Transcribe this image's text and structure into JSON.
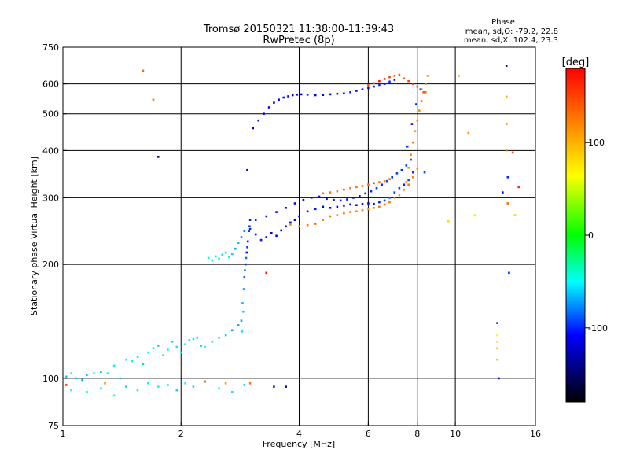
{
  "chart_data": {
    "type": "scatter",
    "title": "Tromsø 20150321 11:38:00-11:39:43",
    "subtitle": "RwPretec (8p)",
    "xlabel": "Frequency [MHz]",
    "ylabel": "Stationary phase Virtual Height [km]",
    "x_scale": "log",
    "y_scale": "log",
    "xlim": [
      1,
      16
    ],
    "ylim": [
      75,
      750
    ],
    "xticks": [
      1,
      2,
      4,
      6,
      8,
      10,
      16
    ],
    "yticks": [
      75,
      100,
      200,
      300,
      400,
      500,
      600,
      750
    ],
    "xgrid": [
      2,
      4,
      6,
      8,
      10
    ],
    "ygrid": [
      100,
      200,
      300,
      400,
      500,
      600
    ],
    "grid": true,
    "stats_title": "Phase",
    "stats": [
      "mean, sd,O: -79.2, 22.8",
      "mean, sd,X: 102.4, 23.3"
    ],
    "colorbar": {
      "label": "[deg]",
      "range": [
        -180,
        180
      ],
      "ticks": [
        100,
        0,
        -100
      ],
      "colors": [
        "#ff0000",
        "#ff7f00",
        "#ffff00",
        "#00ff00",
        "#00ffff",
        "#0000ff",
        "#000000"
      ]
    },
    "series": [
      {
        "x": [
          1.02,
          1.05,
          1.08,
          1.12,
          1.15,
          1.2,
          1.25,
          1.3,
          1.35,
          1.4,
          1.45,
          1.5,
          1.55,
          1.6,
          1.65,
          1.7,
          1.75,
          1.8,
          1.85,
          1.9,
          1.95,
          2.0,
          2.05,
          2.1,
          2.15,
          2.2,
          2.25,
          2.3,
          2.4,
          2.5,
          2.6,
          2.7,
          2.8
        ],
        "y": [
          101,
          103,
          100,
          99,
          102,
          103,
          104,
          103,
          108,
          100,
          112,
          111,
          114,
          109,
          117,
          120,
          122,
          115,
          119,
          125,
          121,
          117,
          123,
          126,
          127,
          128,
          122,
          121,
          125,
          128,
          130,
          134,
          138
        ],
        "phase": [
          -60,
          -40,
          -60,
          -70,
          -65,
          -50,
          -60,
          -50,
          -40,
          -60,
          -50,
          -45,
          -55,
          -60,
          -50,
          -55,
          -60,
          -45,
          -50,
          -60,
          -55,
          -50,
          -55,
          -60,
          -50,
          -55,
          -60,
          -50,
          -55,
          -55,
          -60,
          -70,
          -75
        ]
      },
      {
        "x": [
          1.05,
          1.15,
          1.25,
          1.35,
          1.45,
          1.55,
          1.65,
          1.75,
          1.85,
          1.95,
          2.05,
          2.15,
          2.3,
          2.5,
          2.7,
          2.9
        ],
        "y": [
          93,
          92,
          94,
          90,
          95,
          93,
          97,
          95,
          96,
          93,
          97,
          95,
          98,
          94,
          92,
          96
        ],
        "phase": [
          -50,
          -45,
          -55,
          -50,
          -60,
          -50,
          -55,
          -45,
          -50,
          -60,
          -50,
          -55,
          -60,
          -50,
          -55,
          -60
        ]
      },
      {
        "x": [
          2.85,
          2.87,
          2.89,
          2.9,
          2.92,
          2.94,
          2.96,
          2.98,
          3.0,
          2.88,
          2.91,
          2.95,
          2.99,
          2.86,
          2.93
        ],
        "y": [
          142,
          158,
          172,
          185,
          200,
          215,
          230,
          245,
          262,
          150,
          193,
          222,
          252,
          133,
          208
        ],
        "phase": [
          -70,
          -65,
          -75,
          -90,
          -100,
          -110,
          -105,
          -95,
          -100,
          -60,
          -80,
          -95,
          -100,
          -55,
          -85
        ]
      },
      {
        "x": [
          2.35,
          2.4,
          2.45,
          2.5,
          2.55,
          2.6,
          2.65,
          2.7,
          2.75,
          2.8,
          2.85,
          2.9
        ],
        "y": [
          208,
          205,
          210,
          207,
          212,
          215,
          209,
          213,
          220,
          228,
          236,
          245
        ],
        "phase": [
          -50,
          -45,
          -55,
          -50,
          -60,
          -55,
          -50,
          -60,
          -70,
          -65,
          -75,
          -80
        ]
      },
      {
        "x": [
          3.0,
          3.1,
          3.2,
          3.3,
          3.4,
          3.5,
          3.6,
          3.7,
          3.8,
          3.9,
          4.0,
          4.2,
          4.4,
          4.6,
          4.8,
          5.0,
          5.2,
          5.4,
          5.6,
          5.8,
          6.0,
          6.2,
          6.4,
          6.6,
          6.8,
          7.0,
          7.2,
          7.4,
          7.6,
          7.8
        ],
        "y": [
          248,
          240,
          232,
          236,
          242,
          238,
          246,
          252,
          258,
          262,
          268,
          276,
          280,
          284,
          282,
          284,
          286,
          288,
          287,
          289,
          290,
          289,
          292,
          295,
          300,
          310,
          318,
          325,
          334,
          350
        ],
        "phase": [
          -100,
          -110,
          -105,
          -115,
          -110,
          -108,
          -112,
          -105,
          -110,
          -115,
          -108,
          -110,
          -105,
          -112,
          -110,
          -108,
          -106,
          -110,
          -104,
          -108,
          -110,
          -106,
          -104,
          -100,
          -90,
          -100,
          -95,
          -100,
          -90,
          -95
        ]
      },
      {
        "x": [
          3.1,
          3.3,
          3.5,
          3.7,
          3.9,
          4.1,
          4.3,
          4.5,
          4.7,
          4.9,
          5.1,
          5.3,
          5.5,
          5.7,
          5.9,
          6.1,
          6.3,
          6.5,
          6.7,
          6.9,
          7.1,
          7.3,
          7.5,
          7.7
        ],
        "y": [
          262,
          268,
          275,
          282,
          290,
          296,
          300,
          302,
          298,
          296,
          295,
          297,
          300,
          303,
          308,
          312,
          318,
          325,
          332,
          340,
          348,
          355,
          365,
          378
        ],
        "phase": [
          -100,
          -105,
          -110,
          -108,
          -112,
          -110,
          -105,
          -110,
          -108,
          -106,
          -104,
          -108,
          -110,
          -106,
          -104,
          -100,
          -98,
          -100,
          -95,
          -100,
          -96,
          -98,
          -94,
          -96
        ]
      },
      {
        "x": [
          3.8,
          4.0,
          4.2,
          4.4,
          4.6,
          4.8,
          5.0,
          5.2,
          5.4,
          5.6,
          5.8,
          6.0,
          6.2,
          6.4,
          6.6,
          6.8,
          7.0,
          7.2,
          7.4,
          7.6,
          7.8,
          8.0
        ],
        "y": [
          255,
          252,
          254,
          256,
          262,
          268,
          270,
          273,
          275,
          276,
          278,
          280,
          282,
          284,
          288,
          292,
          300,
          305,
          315,
          325,
          340,
          358
        ],
        "phase": [
          120,
          110,
          125,
          130,
          115,
          120,
          110,
          125,
          130,
          120,
          115,
          110,
          120,
          125,
          130,
          120,
          115,
          110,
          120,
          125,
          115,
          110
        ]
      },
      {
        "x": [
          4.6,
          4.8,
          5.0,
          5.2,
          5.4,
          5.6,
          5.8,
          6.0,
          6.2,
          6.4,
          6.6,
          6.8
        ],
        "y": [
          308,
          310,
          312,
          315,
          318,
          320,
          322,
          325,
          328,
          330,
          332,
          336
        ],
        "phase": [
          130,
          125,
          120,
          135,
          130,
          125,
          120,
          130,
          135,
          125,
          120,
          130
        ]
      },
      {
        "x": [
          7.5,
          7.6,
          7.7,
          7.8,
          7.9,
          8.0,
          8.1,
          8.2,
          8.3,
          8.4,
          8.5,
          7.55,
          7.75,
          7.95,
          8.15,
          8.35
        ],
        "y": [
          330,
          360,
          390,
          420,
          450,
          480,
          510,
          540,
          570,
          600,
          630,
          410,
          470,
          530,
          580,
          350
        ],
        "phase": [
          110,
          115,
          120,
          125,
          110,
          120,
          115,
          130,
          140,
          120,
          110,
          -100,
          -110,
          -105,
          -100,
          -95
        ]
      },
      {
        "x": [
          3.05,
          3.15,
          3.25,
          3.35,
          3.45,
          3.55,
          3.65,
          3.75,
          3.85,
          3.95,
          4.05,
          4.2,
          4.4,
          4.6,
          4.8,
          5.0,
          5.2,
          5.4,
          5.6,
          5.8,
          6.0,
          6.2,
          6.4,
          6.6,
          6.8,
          7.0
        ],
        "y": [
          458,
          480,
          500,
          520,
          535,
          545,
          552,
          556,
          560,
          562,
          563,
          562,
          560,
          561,
          563,
          565,
          566,
          570,
          575,
          580,
          585,
          590,
          596,
          600,
          608,
          615
        ],
        "phase": [
          -110,
          -105,
          -115,
          -110,
          -108,
          -112,
          -105,
          -110,
          -115,
          -108,
          -110,
          -105,
          -112,
          -110,
          -108,
          -106,
          -110,
          -104,
          -108,
          -110,
          -106,
          -104,
          -100,
          -105,
          -100,
          -110
        ]
      },
      {
        "x": [
          6.0,
          6.2,
          6.4,
          6.6,
          6.8,
          7.0,
          7.2,
          7.4,
          7.6,
          7.8,
          8.0,
          8.2,
          8.4
        ],
        "y": [
          595,
          602,
          610,
          618,
          625,
          630,
          634,
          620,
          610,
          600,
          590,
          580,
          570
        ],
        "phase": [
          140,
          150,
          170,
          160,
          150,
          145,
          140,
          135,
          150,
          160,
          140,
          130,
          120
        ]
      },
      {
        "x": [
          12.8,
          12.8,
          12.8,
          12.8,
          12.8,
          12.9,
          13.5,
          13.5,
          13.5,
          13.5,
          13.6,
          13.6,
          13.7,
          14.2,
          13.2,
          14.0,
          14.5
        ],
        "y": [
          140,
          130,
          125,
          120,
          112,
          100,
          670,
          555,
          470,
          400,
          340,
          290,
          190,
          270,
          310,
          395,
          320
        ],
        "phase": [
          -100,
          60,
          80,
          90,
          100,
          -120,
          -150,
          100,
          120,
          110,
          -100,
          130,
          -100,
          50,
          -110,
          150,
          160
        ]
      },
      {
        "x": [
          1.7,
          1.75,
          2.95,
          3.3,
          3.45,
          3.7,
          9.6,
          10.2,
          10.8,
          11.2,
          1.6,
          2.3,
          2.6,
          3.0,
          1.02,
          1.28
        ],
        "y": [
          545,
          385,
          355,
          190,
          95,
          95,
          260,
          630,
          445,
          270,
          650,
          98,
          97,
          97,
          96,
          97
        ],
        "phase": [
          120,
          -140,
          -120,
          170,
          -100,
          -140,
          80,
          100,
          110,
          60,
          130,
          140,
          110,
          120,
          150,
          110
        ]
      }
    ]
  }
}
